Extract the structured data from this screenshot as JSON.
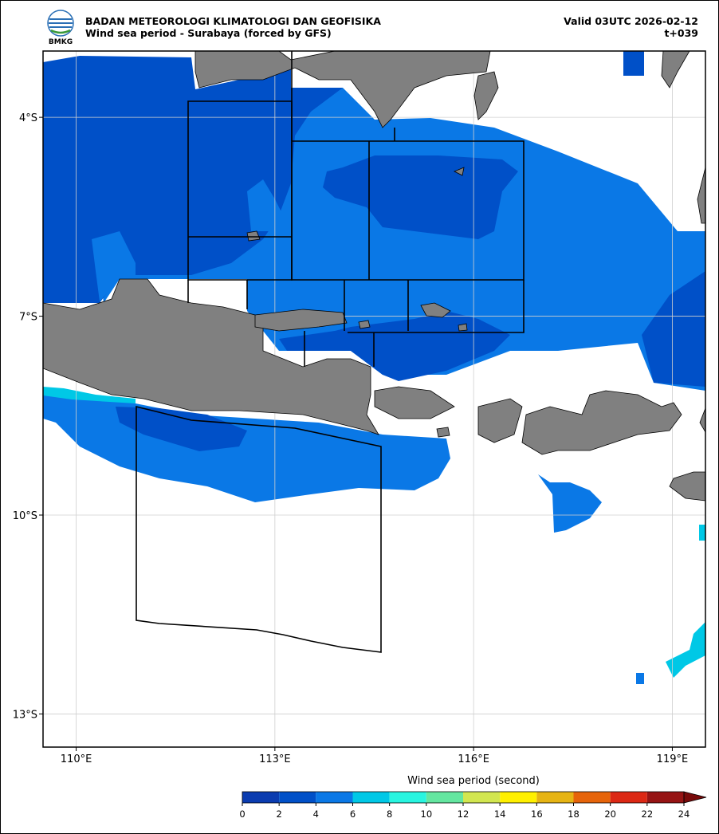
{
  "header": {
    "org": "BADAN METEOROLOGI KLIMATOLOGI DAN GEOFISIKA",
    "subtitle": "Wind sea period - Surabaya (forced by GFS)",
    "valid": "Valid 03UTC 2026-02-12",
    "lead": "t+039",
    "logo_text": "BMKG"
  },
  "map": {
    "xlim": [
      109.5,
      119.5
    ],
    "ylim": [
      -13.5,
      -3
    ],
    "lon_ticks": [
      {
        "value": 110,
        "label": "110°E"
      },
      {
        "value": 113,
        "label": "113°E"
      },
      {
        "value": 116,
        "label": "116°E"
      },
      {
        "value": 119,
        "label": "119°E"
      }
    ],
    "lat_ticks": [
      {
        "value": -4,
        "label": "4°S"
      },
      {
        "value": -7,
        "label": "7°S"
      },
      {
        "value": -10,
        "label": "10°S"
      },
      {
        "value": -13,
        "label": "13°S"
      }
    ],
    "grid": true
  },
  "colorbar": {
    "label": "Wind sea period (second)",
    "ticks": [
      0,
      2,
      4,
      6,
      8,
      10,
      12,
      14,
      16,
      18,
      20,
      22,
      24
    ],
    "colors": [
      "#0b3cb0",
      "#0050c8",
      "#0a78e6",
      "#00c8e6",
      "#28f5e0",
      "#64e6a0",
      "#d2e650",
      "#fff000",
      "#e6b414",
      "#e6640a",
      "#dc2814",
      "#961414"
    ],
    "extend_color": "#780a0a"
  }
}
